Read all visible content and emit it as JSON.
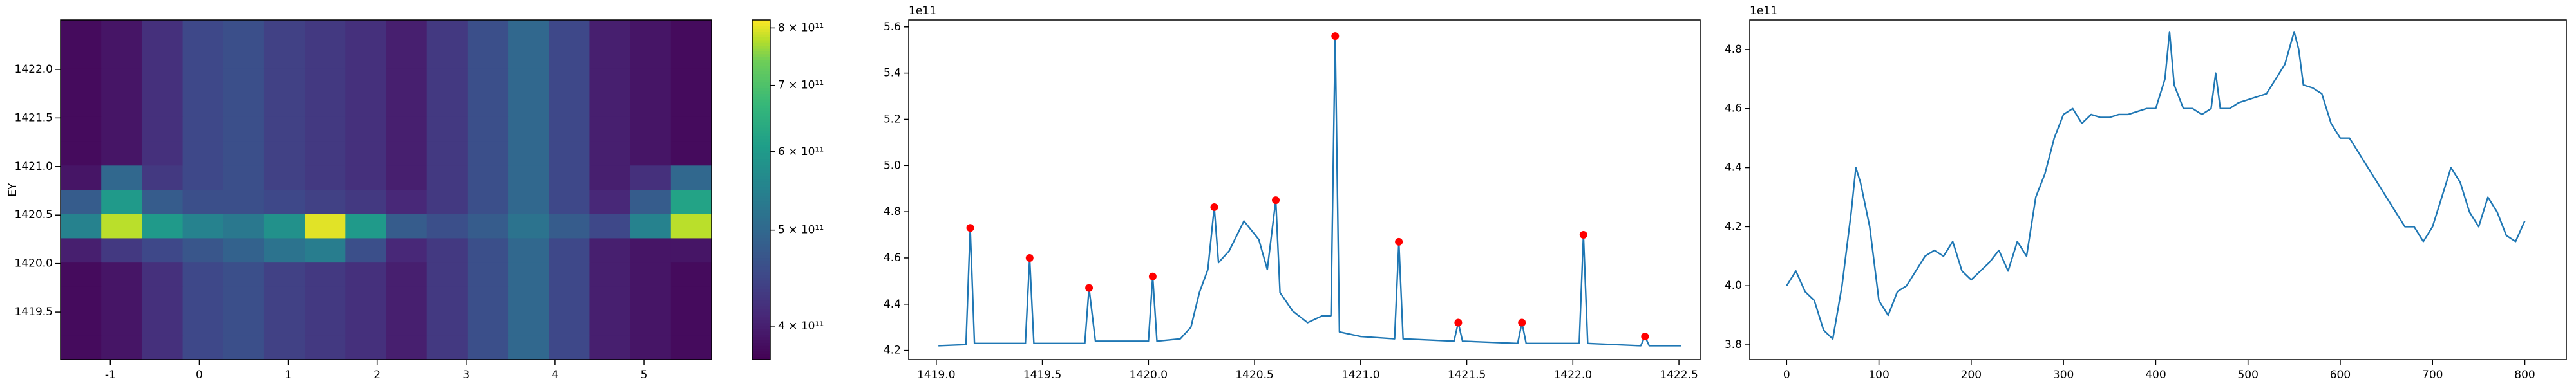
{
  "chart_data": [
    {
      "type": "heatmap",
      "ylabel": "EY",
      "xlim": [
        -1.56,
        5.76
      ],
      "ylim": [
        1419.01,
        1422.51
      ],
      "xticks": [
        -1,
        0,
        1,
        2,
        3,
        4,
        5
      ],
      "yticks": [
        1419.5,
        {
          "value": 1420.0,
          "label": "1420.0"
        },
        1420.5,
        {
          "value": 1421.0,
          "label": "1421.0"
        },
        1421.5,
        {
          "value": 1422.0,
          "label": "1422.0"
        }
      ],
      "colormap": "viridis",
      "values": [
        [
          380000000000.0,
          390000000000.0,
          420000000000.0,
          450000000000.0,
          460000000000.0,
          440000000000.0,
          430000000000.0,
          420000000000.0,
          400000000000.0,
          430000000000.0,
          460000000000.0,
          500000000000.0,
          450000000000.0,
          400000000000.0,
          390000000000.0,
          380000000000.0
        ],
        [
          380000000000.0,
          390000000000.0,
          420000000000.0,
          450000000000.0,
          460000000000.0,
          440000000000.0,
          430000000000.0,
          420000000000.0,
          400000000000.0,
          430000000000.0,
          460000000000.0,
          500000000000.0,
          450000000000.0,
          400000000000.0,
          390000000000.0,
          380000000000.0
        ],
        [
          380000000000.0,
          390000000000.0,
          420000000000.0,
          450000000000.0,
          460000000000.0,
          440000000000.0,
          430000000000.0,
          420000000000.0,
          400000000000.0,
          430000000000.0,
          460000000000.0,
          500000000000.0,
          450000000000.0,
          400000000000.0,
          390000000000.0,
          380000000000.0
        ],
        [
          380000000000.0,
          390000000000.0,
          420000000000.0,
          450000000000.0,
          460000000000.0,
          440000000000.0,
          430000000000.0,
          420000000000.0,
          400000000000.0,
          430000000000.0,
          460000000000.0,
          500000000000.0,
          450000000000.0,
          400000000000.0,
          390000000000.0,
          380000000000.0
        ],
        [
          380000000000.0,
          390000000000.0,
          420000000000.0,
          450000000000.0,
          460000000000.0,
          440000000000.0,
          430000000000.0,
          420000000000.0,
          400000000000.0,
          430000000000.0,
          460000000000.0,
          500000000000.0,
          450000000000.0,
          400000000000.0,
          390000000000.0,
          380000000000.0
        ],
        [
          380000000000.0,
          390000000000.0,
          420000000000.0,
          450000000000.0,
          460000000000.0,
          440000000000.0,
          430000000000.0,
          420000000000.0,
          400000000000.0,
          430000000000.0,
          460000000000.0,
          500000000000.0,
          450000000000.0,
          400000000000.0,
          390000000000.0,
          380000000000.0
        ],
        [
          390000000000.0,
          500000000000.0,
          430000000000.0,
          450000000000.0,
          460000000000.0,
          440000000000.0,
          430000000000.0,
          420000000000.0,
          400000000000.0,
          430000000000.0,
          460000000000.0,
          500000000000.0,
          450000000000.0,
          400000000000.0,
          420000000000.0,
          500000000000.0
        ],
        [
          480000000000.0,
          600000000000.0,
          480000000000.0,
          460000000000.0,
          460000000000.0,
          450000000000.0,
          440000000000.0,
          430000000000.0,
          410000000000.0,
          430000000000.0,
          460000000000.0,
          500000000000.0,
          450000000000.0,
          410000000000.0,
          480000000000.0,
          620000000000.0
        ],
        [
          550000000000.0,
          780000000000.0,
          600000000000.0,
          550000000000.0,
          530000000000.0,
          580000000000.0,
          800000000000.0,
          600000000000.0,
          480000000000.0,
          460000000000.0,
          480000000000.0,
          520000000000.0,
          480000000000.0,
          450000000000.0,
          550000000000.0,
          780000000000.0
        ],
        [
          400000000000.0,
          430000000000.0,
          450000000000.0,
          470000000000.0,
          490000000000.0,
          520000000000.0,
          540000000000.0,
          460000000000.0,
          410000000000.0,
          430000000000.0,
          460000000000.0,
          500000000000.0,
          450000000000.0,
          400000000000.0,
          390000000000.0,
          390000000000.0
        ],
        [
          380000000000.0,
          390000000000.0,
          420000000000.0,
          450000000000.0,
          460000000000.0,
          440000000000.0,
          430000000000.0,
          420000000000.0,
          400000000000.0,
          430000000000.0,
          460000000000.0,
          500000000000.0,
          450000000000.0,
          400000000000.0,
          390000000000.0,
          380000000000.0
        ],
        [
          380000000000.0,
          390000000000.0,
          420000000000.0,
          450000000000.0,
          460000000000.0,
          440000000000.0,
          430000000000.0,
          420000000000.0,
          400000000000.0,
          430000000000.0,
          460000000000.0,
          500000000000.0,
          450000000000.0,
          400000000000.0,
          390000000000.0,
          380000000000.0
        ],
        [
          380000000000.0,
          390000000000.0,
          420000000000.0,
          450000000000.0,
          460000000000.0,
          440000000000.0,
          430000000000.0,
          420000000000.0,
          400000000000.0,
          430000000000.0,
          460000000000.0,
          500000000000.0,
          450000000000.0,
          400000000000.0,
          390000000000.0,
          380000000000.0
        ],
        [
          380000000000.0,
          390000000000.0,
          420000000000.0,
          450000000000.0,
          460000000000.0,
          440000000000.0,
          430000000000.0,
          420000000000.0,
          400000000000.0,
          430000000000.0,
          460000000000.0,
          500000000000.0,
          450000000000.0,
          400000000000.0,
          390000000000.0,
          380000000000.0
        ]
      ],
      "colorbar": {
        "scale": "log",
        "lim": [
          370000000000.0,
          815000000000.0
        ],
        "ticks": [
          {
            "value": 400000000000.0,
            "label": "4 × 10¹¹"
          },
          {
            "value": 500000000000.0,
            "label": "5 × 10¹¹"
          },
          {
            "value": 600000000000.0,
            "label": "6 × 10¹¹"
          },
          {
            "value": 700000000000.0,
            "label": "7 × 10¹¹"
          },
          {
            "value": 800000000000.0,
            "label": "8 × 10¹¹"
          }
        ]
      }
    },
    {
      "type": "line",
      "y_offset_label": "1e11",
      "xlim": [
        1418.87,
        1422.6
      ],
      "ylim": [
        416000000000.0,
        563000000000.0
      ],
      "xticks": [
        {
          "value": 1419.0,
          "label": "1419.0"
        },
        1419.5,
        {
          "value": 1420.0,
          "label": "1420.0"
        },
        1420.5,
        {
          "value": 1421.0,
          "label": "1421.0"
        },
        1421.5,
        {
          "value": 1422.0,
          "label": "1422.0"
        },
        1422.5
      ],
      "yticks": [
        {
          "value": 420000000000.0,
          "label": "4.2"
        },
        {
          "value": 440000000000.0,
          "label": "4.4"
        },
        {
          "value": 460000000000.0,
          "label": "4.6"
        },
        {
          "value": 480000000000.0,
          "label": "4.8"
        },
        {
          "value": 500000000000.0,
          "label": "5.0"
        },
        {
          "value": 520000000000.0,
          "label": "5.2"
        },
        {
          "value": 540000000000.0,
          "label": "5.4"
        },
        {
          "value": 560000000000.0,
          "label": "5.6"
        }
      ],
      "series": [
        {
          "color": "#1f77b4",
          "x": [
            1419.01,
            1419.14,
            1419.16,
            1419.18,
            1419.42,
            1419.44,
            1419.46,
            1419.7,
            1419.72,
            1419.75,
            1420.0,
            1420.02,
            1420.04,
            1420.15,
            1420.2,
            1420.24,
            1420.28,
            1420.31,
            1420.33,
            1420.38,
            1420.45,
            1420.52,
            1420.56,
            1420.6,
            1420.62,
            1420.68,
            1420.75,
            1420.82,
            1420.86,
            1420.88,
            1420.9,
            1421.0,
            1421.16,
            1421.18,
            1421.2,
            1421.44,
            1421.46,
            1421.48,
            1421.74,
            1421.76,
            1421.78,
            1422.03,
            1422.05,
            1422.07,
            1422.32,
            1422.34,
            1422.36,
            1422.51
          ],
          "values": [
            422000000000.0,
            422500000000.0,
            473000000000.0,
            423000000000.0,
            423000000000.0,
            460000000000.0,
            423000000000.0,
            423000000000.0,
            447000000000.0,
            424000000000.0,
            424000000000.0,
            452000000000.0,
            424000000000.0,
            425000000000.0,
            430000000000.0,
            445000000000.0,
            455000000000.0,
            482000000000.0,
            458000000000.0,
            463000000000.0,
            476000000000.0,
            468000000000.0,
            455000000000.0,
            485000000000.0,
            445000000000.0,
            437000000000.0,
            432000000000.0,
            435000000000.0,
            435000000000.0,
            556000000000.0,
            428000000000.0,
            426000000000.0,
            425000000000.0,
            467000000000.0,
            425000000000.0,
            424000000000.0,
            432000000000.0,
            424000000000.0,
            423000000000.0,
            432000000000.0,
            423000000000.0,
            423000000000.0,
            470000000000.0,
            423000000000.0,
            422000000000.0,
            426000000000.0,
            422000000000.0,
            422000000000.0
          ]
        },
        {
          "color": "red",
          "marker": "o",
          "x": [
            1419.16,
            1419.44,
            1419.72,
            1420.02,
            1420.31,
            1420.6,
            1420.88,
            1421.18,
            1421.46,
            1421.76,
            1422.05,
            1422.34
          ],
          "values": [
            473000000000.0,
            460000000000.0,
            447000000000.0,
            452000000000.0,
            482000000000.0,
            485000000000.0,
            556000000000.0,
            467000000000.0,
            432000000000.0,
            432000000000.0,
            470000000000.0,
            426000000000.0
          ]
        }
      ]
    },
    {
      "type": "line",
      "y_offset_label": "1e11",
      "xlim": [
        -40,
        845
      ],
      "ylim": [
        375000000000.0,
        490000000000.0
      ],
      "xticks": [
        0,
        100,
        200,
        300,
        400,
        500,
        600,
        700,
        800
      ],
      "yticks": [
        {
          "value": 380000000000.0,
          "label": "3.8"
        },
        {
          "value": 400000000000.0,
          "label": "4.0"
        },
        {
          "value": 420000000000.0,
          "label": "4.2"
        },
        {
          "value": 440000000000.0,
          "label": "4.4"
        },
        {
          "value": 460000000000.0,
          "label": "4.6"
        },
        {
          "value": 480000000000.0,
          "label": "4.8"
        }
      ],
      "series": [
        {
          "color": "#1f77b4",
          "x": [
            0,
            10,
            20,
            30,
            40,
            50,
            60,
            70,
            75,
            80,
            90,
            100,
            110,
            120,
            130,
            140,
            150,
            160,
            170,
            180,
            190,
            200,
            210,
            220,
            230,
            240,
            250,
            260,
            270,
            280,
            290,
            300,
            310,
            320,
            330,
            340,
            350,
            360,
            370,
            380,
            390,
            400,
            410,
            415,
            420,
            430,
            440,
            450,
            460,
            465,
            470,
            480,
            490,
            500,
            510,
            520,
            530,
            540,
            550,
            555,
            560,
            570,
            580,
            590,
            600,
            610,
            620,
            630,
            640,
            650,
            660,
            670,
            680,
            690,
            700,
            710,
            720,
            730,
            740,
            750,
            760,
            770,
            780,
            790,
            800
          ],
          "values": [
            400000000000.0,
            405000000000.0,
            398000000000.0,
            395000000000.0,
            385000000000.0,
            382000000000.0,
            400000000000.0,
            425000000000.0,
            440000000000.0,
            435000000000.0,
            420000000000.0,
            395000000000.0,
            390000000000.0,
            398000000000.0,
            400000000000.0,
            405000000000.0,
            410000000000.0,
            412000000000.0,
            410000000000.0,
            415000000000.0,
            405000000000.0,
            402000000000.0,
            405000000000.0,
            408000000000.0,
            412000000000.0,
            405000000000.0,
            415000000000.0,
            410000000000.0,
            430000000000.0,
            438000000000.0,
            450000000000.0,
            458000000000.0,
            460000000000.0,
            455000000000.0,
            458000000000.0,
            457000000000.0,
            457000000000.0,
            458000000000.0,
            458000000000.0,
            459000000000.0,
            460000000000.0,
            460000000000.0,
            470000000000.0,
            486000000000.0,
            468000000000.0,
            460000000000.0,
            460000000000.0,
            458000000000.0,
            460000000000.0,
            472000000000.0,
            460000000000.0,
            460000000000.0,
            462000000000.0,
            463000000000.0,
            464000000000.0,
            465000000000.0,
            470000000000.0,
            475000000000.0,
            486000000000.0,
            480000000000.0,
            468000000000.0,
            467000000000.0,
            465000000000.0,
            455000000000.0,
            450000000000.0,
            450000000000.0,
            445000000000.0,
            440000000000.0,
            435000000000.0,
            430000000000.0,
            425000000000.0,
            420000000000.0,
            420000000000.0,
            415000000000.0,
            420000000000.0,
            430000000000.0,
            440000000000.0,
            435000000000.0,
            425000000000.0,
            420000000000.0,
            430000000000.0,
            425000000000.0,
            417000000000.0,
            415000000000.0,
            422000000000.0
          ]
        }
      ]
    }
  ]
}
